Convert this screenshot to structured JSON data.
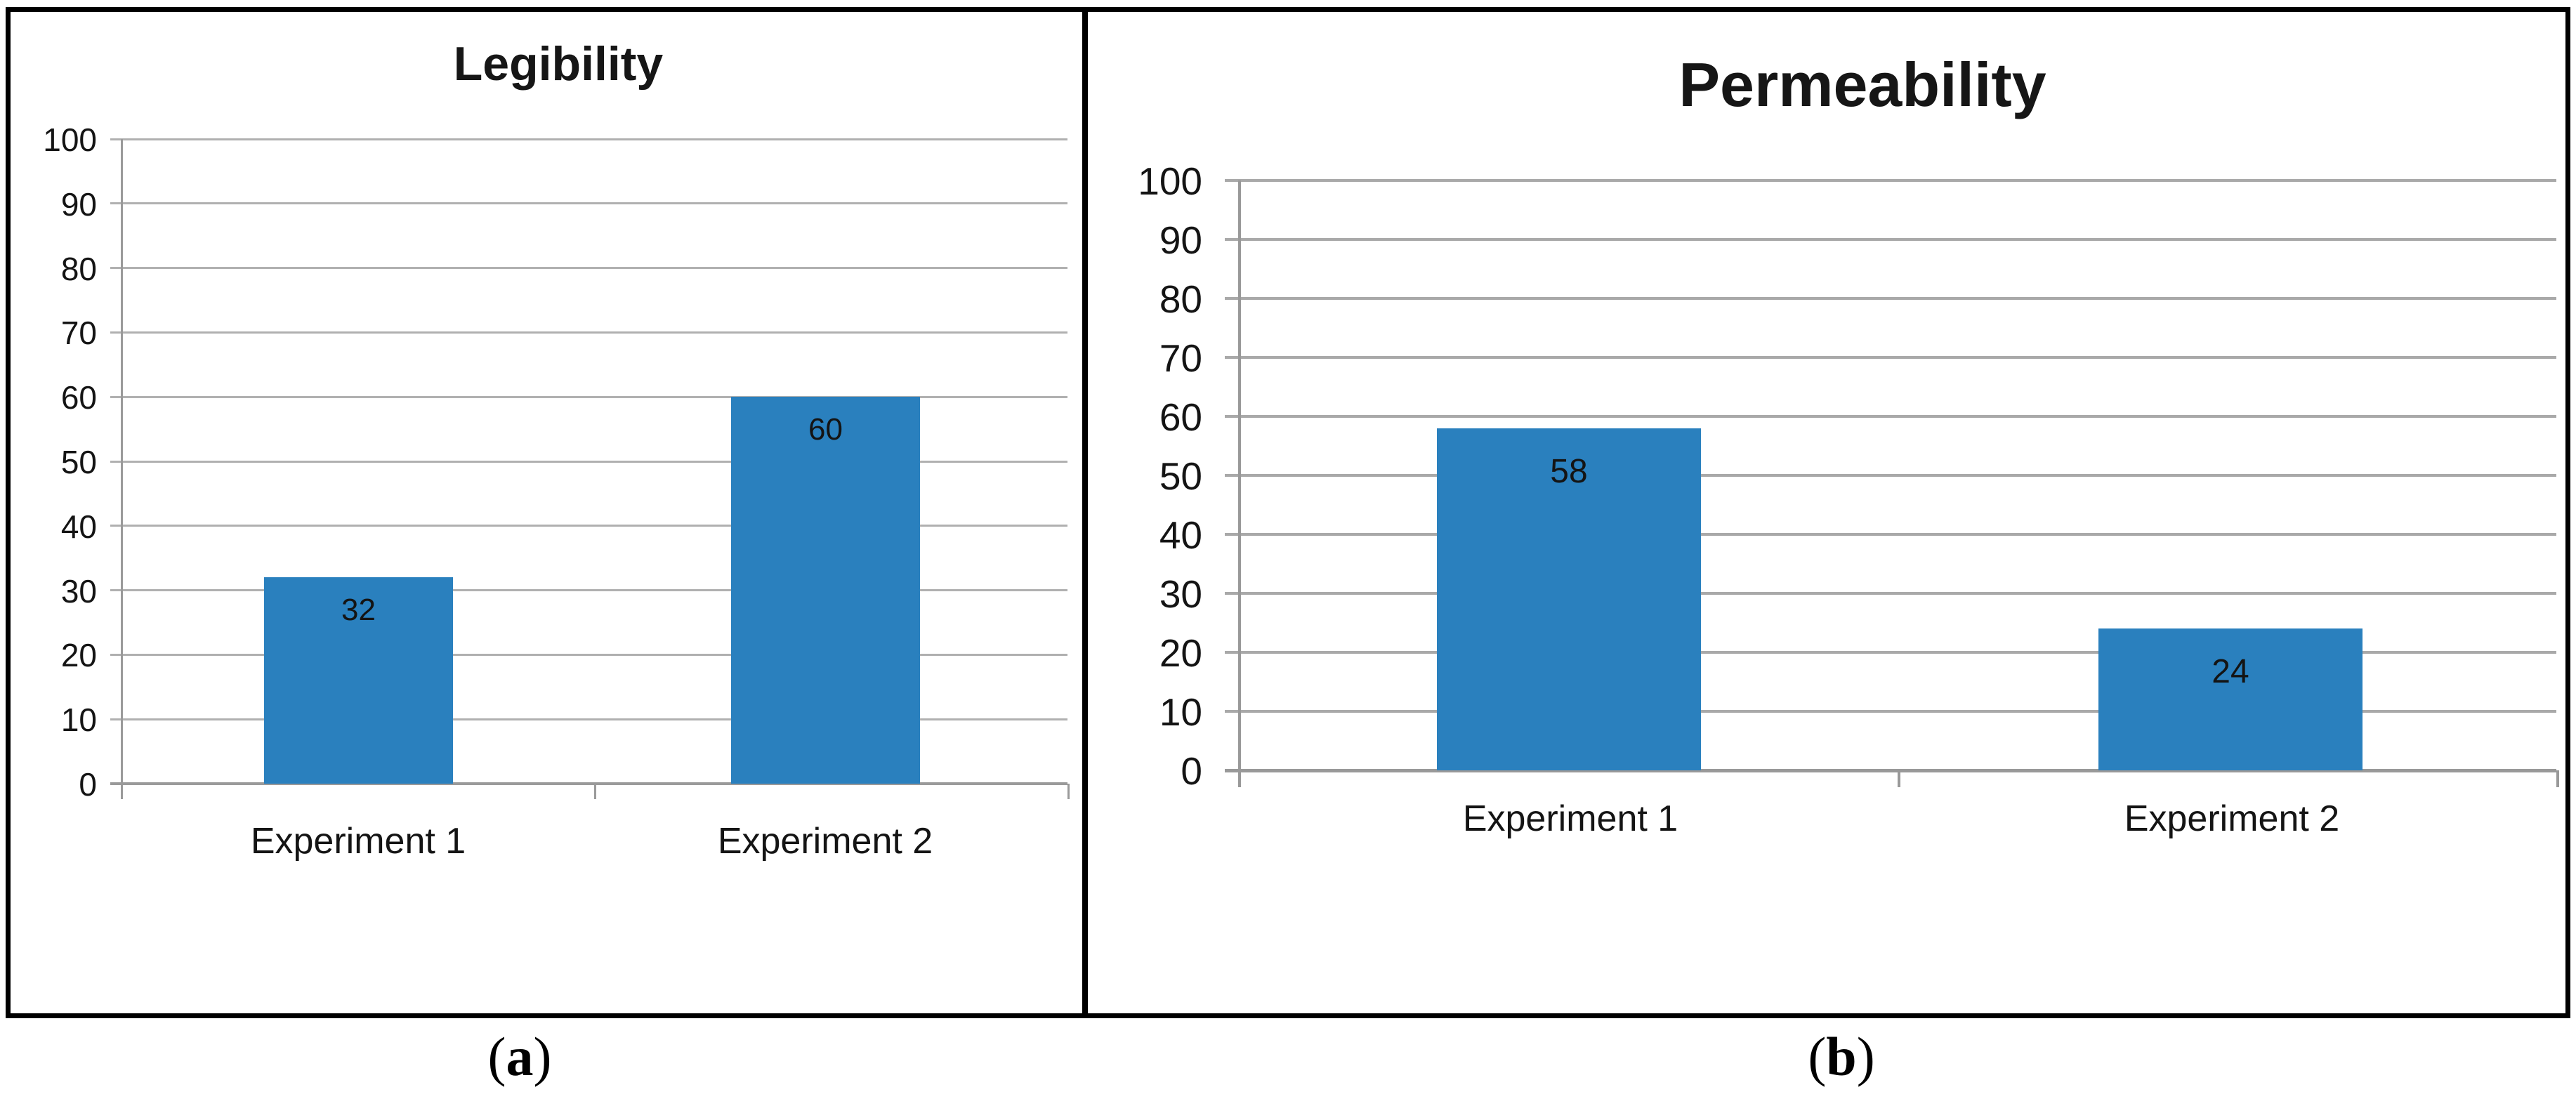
{
  "chart_data": [
    {
      "id": "legibility",
      "type": "bar",
      "title": "Legibility",
      "categories": [
        "Experiment 1",
        "Experiment 2"
      ],
      "values": [
        32,
        60
      ],
      "bar_labels": [
        "32",
        "60"
      ],
      "y_ticks": [
        0,
        10,
        20,
        30,
        40,
        50,
        60,
        70,
        80,
        90,
        100
      ],
      "ylim": [
        0,
        100
      ],
      "xlabel": "",
      "ylabel": "",
      "grid": true,
      "legend": false,
      "colors": {
        "bar": "#2A80BE",
        "grid": "#b0b0b0",
        "axis": "#9a9a9a",
        "text": "#141414"
      }
    },
    {
      "id": "permeability",
      "type": "bar",
      "title": "Permeability",
      "categories": [
        "Experiment 1",
        "Experiment 2"
      ],
      "values": [
        58,
        24
      ],
      "bar_labels": [
        "58",
        "24"
      ],
      "y_ticks": [
        0,
        10,
        20,
        30,
        40,
        50,
        60,
        70,
        80,
        90,
        100
      ],
      "ylim": [
        0,
        100
      ],
      "xlabel": "",
      "ylabel": "",
      "grid": true,
      "legend": false,
      "colors": {
        "bar": "#2A80BE",
        "grid": "#a9a9a9",
        "axis": "#999999",
        "text": "#141414"
      }
    }
  ],
  "captions": {
    "a": {
      "open": "(",
      "letter": "a",
      "close": ")"
    },
    "b": {
      "open": "(",
      "letter": "b",
      "close": ")"
    }
  }
}
